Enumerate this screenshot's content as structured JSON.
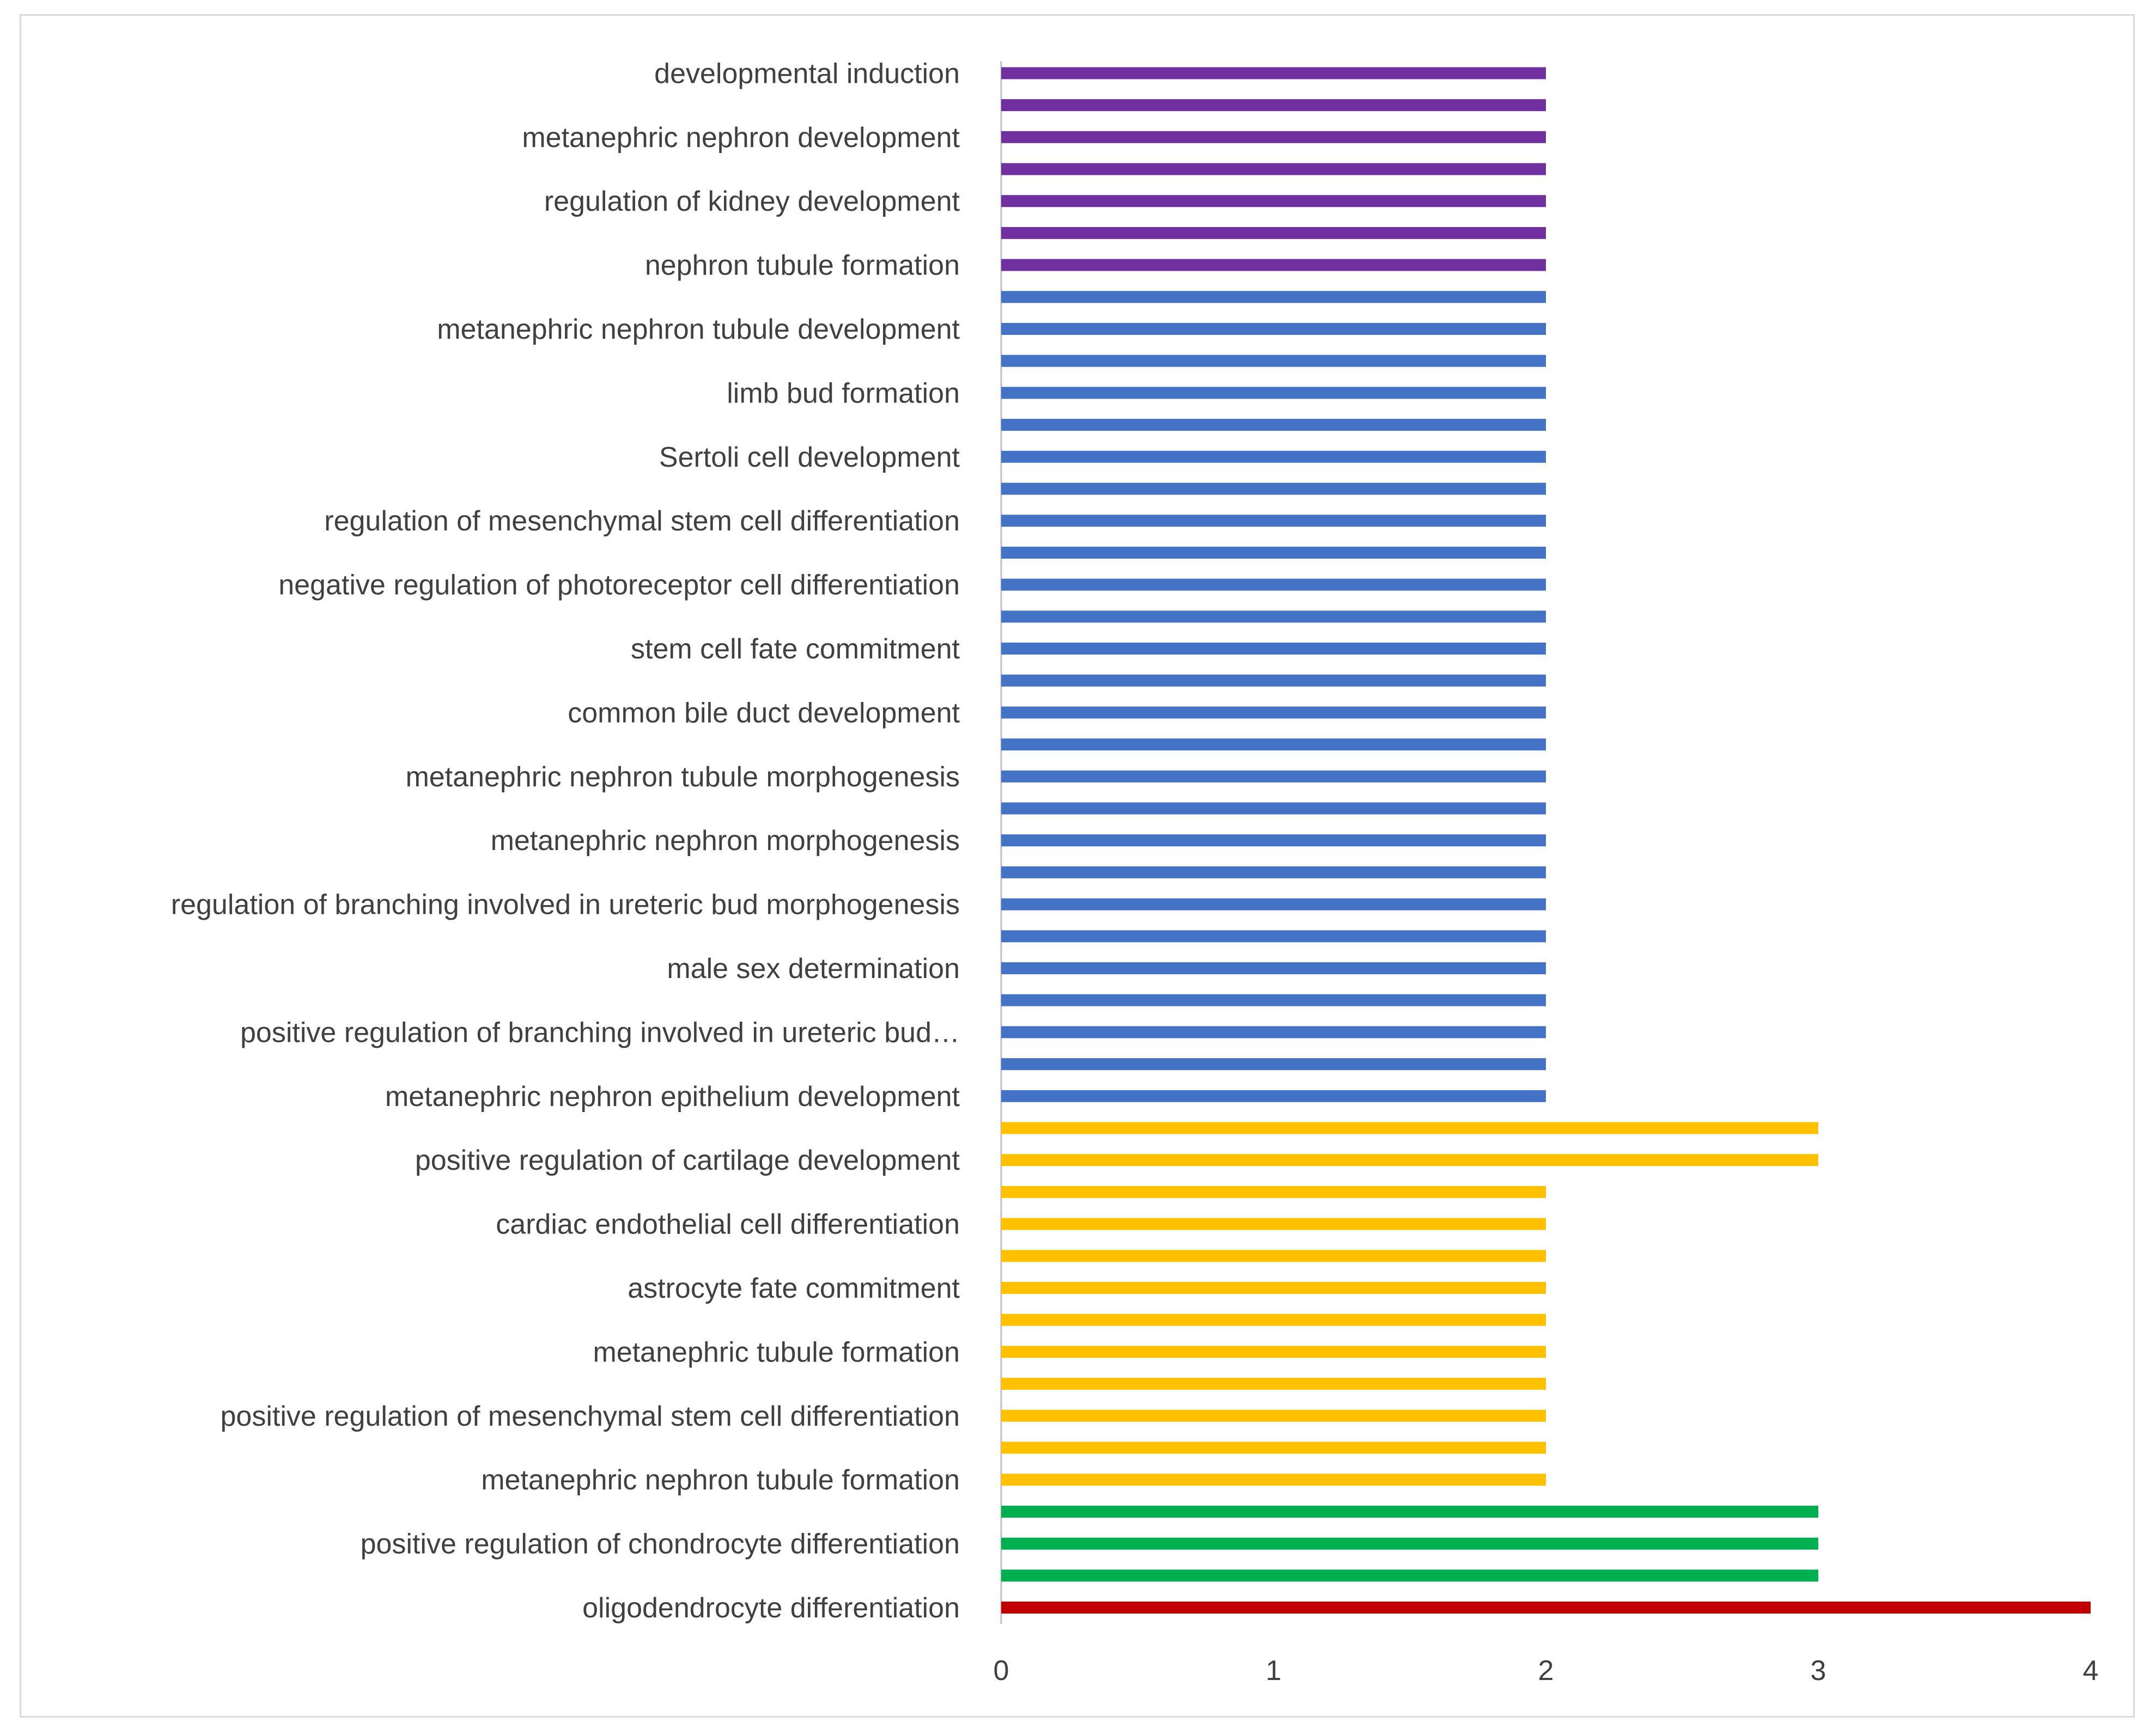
{
  "chart_data": {
    "type": "bar",
    "orientation": "horizontal",
    "title": "",
    "xlabel": "",
    "ylabel": "",
    "xlim": [
      0,
      4
    ],
    "x_ticks": [
      "0",
      "1",
      "2",
      "3",
      "4"
    ],
    "grid": false,
    "legend": "none",
    "colors": {
      "red": "#c00000",
      "green": "#00b050",
      "yellow": "#ffc000",
      "blue": "#4472c4",
      "purple": "#7030a0"
    },
    "bars": [
      {
        "label": "oligodendrocyte differentiation",
        "value": 4,
        "color": "red"
      },
      {
        "label": "",
        "value": 3,
        "color": "green"
      },
      {
        "label": "positive regulation of chondrocyte differentiation",
        "value": 3,
        "color": "green"
      },
      {
        "label": "",
        "value": 3,
        "color": "green"
      },
      {
        "label": "metanephric nephron tubule formation",
        "value": 2,
        "color": "yellow"
      },
      {
        "label": "",
        "value": 2,
        "color": "yellow"
      },
      {
        "label": "positive regulation of mesenchymal stem cell differentiation",
        "value": 2,
        "color": "yellow"
      },
      {
        "label": "",
        "value": 2,
        "color": "yellow"
      },
      {
        "label": "metanephric tubule formation",
        "value": 2,
        "color": "yellow"
      },
      {
        "label": "",
        "value": 2,
        "color": "yellow"
      },
      {
        "label": "astrocyte fate commitment",
        "value": 2,
        "color": "yellow"
      },
      {
        "label": "",
        "value": 2,
        "color": "yellow"
      },
      {
        "label": "cardiac endothelial cell differentiation",
        "value": 2,
        "color": "yellow"
      },
      {
        "label": "",
        "value": 2,
        "color": "yellow"
      },
      {
        "label": "positive regulation of cartilage development",
        "value": 3,
        "color": "yellow"
      },
      {
        "label": "",
        "value": 3,
        "color": "yellow"
      },
      {
        "label": "metanephric nephron epithelium development",
        "value": 2,
        "color": "blue"
      },
      {
        "label": "",
        "value": 2,
        "color": "blue"
      },
      {
        "label": "positive regulation of branching involved in ureteric bud…",
        "value": 2,
        "color": "blue"
      },
      {
        "label": "",
        "value": 2,
        "color": "blue"
      },
      {
        "label": "male sex determination",
        "value": 2,
        "color": "blue"
      },
      {
        "label": "",
        "value": 2,
        "color": "blue"
      },
      {
        "label": "regulation of branching involved in ureteric bud morphogenesis",
        "value": 2,
        "color": "blue"
      },
      {
        "label": "",
        "value": 2,
        "color": "blue"
      },
      {
        "label": "metanephric nephron morphogenesis",
        "value": 2,
        "color": "blue"
      },
      {
        "label": "",
        "value": 2,
        "color": "blue"
      },
      {
        "label": "metanephric nephron tubule morphogenesis",
        "value": 2,
        "color": "blue"
      },
      {
        "label": "",
        "value": 2,
        "color": "blue"
      },
      {
        "label": "common bile duct development",
        "value": 2,
        "color": "blue"
      },
      {
        "label": "",
        "value": 2,
        "color": "blue"
      },
      {
        "label": "stem cell fate commitment",
        "value": 2,
        "color": "blue"
      },
      {
        "label": "",
        "value": 2,
        "color": "blue"
      },
      {
        "label": "negative regulation of photoreceptor cell differentiation",
        "value": 2,
        "color": "blue"
      },
      {
        "label": "",
        "value": 2,
        "color": "blue"
      },
      {
        "label": "regulation of mesenchymal stem cell differentiation",
        "value": 2,
        "color": "blue"
      },
      {
        "label": "",
        "value": 2,
        "color": "blue"
      },
      {
        "label": "Sertoli cell development",
        "value": 2,
        "color": "blue"
      },
      {
        "label": "",
        "value": 2,
        "color": "blue"
      },
      {
        "label": "limb bud formation",
        "value": 2,
        "color": "blue"
      },
      {
        "label": "",
        "value": 2,
        "color": "blue"
      },
      {
        "label": "metanephric nephron tubule development",
        "value": 2,
        "color": "blue"
      },
      {
        "label": "",
        "value": 2,
        "color": "blue"
      },
      {
        "label": "nephron tubule formation",
        "value": 2,
        "color": "purple"
      },
      {
        "label": "",
        "value": 2,
        "color": "purple"
      },
      {
        "label": "regulation of kidney development",
        "value": 2,
        "color": "purple"
      },
      {
        "label": "",
        "value": 2,
        "color": "purple"
      },
      {
        "label": "metanephric nephron development",
        "value": 2,
        "color": "purple"
      },
      {
        "label": "",
        "value": 2,
        "color": "purple"
      },
      {
        "label": "developmental induction",
        "value": 2,
        "color": "purple"
      }
    ]
  }
}
